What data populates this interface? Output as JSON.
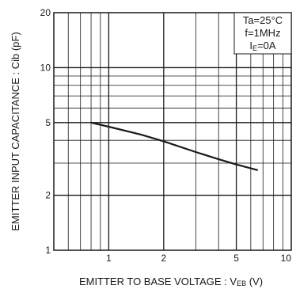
{
  "chart_data": {
    "type": "line",
    "xlabel": "EMITTER TO BASE VOLTAGE : VEB (V)",
    "xlabel_parts": {
      "main": "EMITTER TO BASE VOLTAGE : V",
      "sub": "EB",
      "tail": " (V)"
    },
    "ylabel": "EMITTER INPUT CAPACITANCE : Cib (pF)",
    "x_scale": "log",
    "y_scale": "log",
    "xlim": [
      0.5,
      10
    ],
    "ylim": [
      1,
      20
    ],
    "x_ticks": [
      1,
      2,
      5,
      10
    ],
    "x_tick_labels": [
      "1",
      "2",
      "5",
      "10"
    ],
    "y_ticks": [
      1,
      2,
      5,
      10,
      20
    ],
    "y_tick_labels": [
      "1",
      "2",
      "5",
      "10",
      "20"
    ],
    "grid": true,
    "annotations": [
      "Ta=25°C",
      "f=1MHz",
      "IE=0A"
    ],
    "annotation_parts": [
      {
        "main": "Ta=25°C",
        "sub": ""
      },
      {
        "main": "f=1MHz",
        "sub": ""
      },
      {
        "main": "I",
        "sub": "E",
        "tail": "=0A"
      }
    ],
    "legend_placement": "top-right",
    "series": [
      {
        "x": [
          0.8,
          1.0,
          1.5,
          2.0,
          3.0,
          4.0,
          5.0,
          6.5
        ],
        "y": [
          5.0,
          4.75,
          4.3,
          3.95,
          3.45,
          3.15,
          2.95,
          2.75
        ]
      }
    ],
    "colors": {
      "line": "#1a1a1a",
      "grid": "#1a1a1a"
    }
  }
}
